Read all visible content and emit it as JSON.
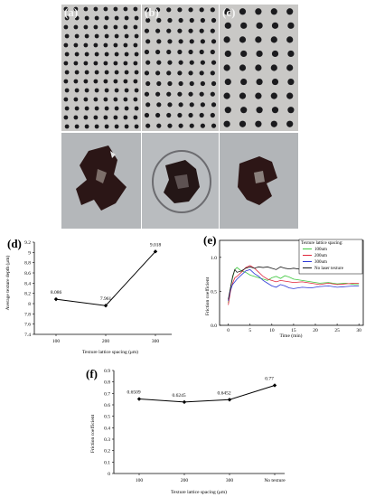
{
  "figure": {
    "colors": {
      "grid_background": "#c9c8c6",
      "dot_color": "#1b1b1e",
      "detail_background": "#b4b7ba",
      "crater_color": "#2b1616",
      "series_100": "#3ec93e",
      "series_200": "#e0263a",
      "series_300": "#2b37d6",
      "series_none": "#1a1a1a"
    },
    "micrographs": [
      {
        "label": "(a)",
        "name": "micrograph-a"
      },
      {
        "label": "(b)",
        "name": "micrograph-b"
      },
      {
        "label": "(c)",
        "name": "micrograph-c"
      }
    ],
    "detail_images": [
      {
        "name": "detail-a"
      },
      {
        "name": "detail-b"
      },
      {
        "name": "detail-c"
      }
    ]
  },
  "chart_data": [
    {
      "panel": "(d)",
      "type": "line",
      "x": [
        100,
        200,
        300
      ],
      "values": [
        8.086,
        7.961,
        9.018
      ],
      "data_labels": [
        "8.086",
        "7.961",
        "9.018"
      ],
      "xlabel": "Texture lattice spacing (μm)",
      "ylabel": "Average texture depth (μm)",
      "xticks": [
        "100",
        "200",
        "300"
      ],
      "yticks": [
        "7.4",
        "7.6",
        "7.8",
        "8",
        "8.2",
        "8.4",
        "8.6",
        "8.8",
        "9",
        "9.2"
      ],
      "ylim": [
        7.4,
        9.2
      ],
      "grid": false
    },
    {
      "panel": "(e)",
      "type": "line",
      "xlabel": "Time (min)",
      "ylabel": "Friction coefficient",
      "xticks": [
        "0",
        "5",
        "10",
        "15",
        "20",
        "25",
        "30"
      ],
      "yticks": [
        "0.0",
        "0.5",
        "1.0"
      ],
      "xlim": [
        -2,
        31
      ],
      "ylim": [
        0,
        1.25
      ],
      "legend_title": "Texture lattice spacing:",
      "legend_position": "top-right",
      "series": [
        {
          "name": "100um",
          "color": "#3ec93e",
          "x": [
            0,
            0.5,
            1,
            1.5,
            2,
            3,
            4,
            5,
            6,
            7,
            8,
            9,
            10,
            11,
            12,
            13,
            14,
            15,
            17,
            19,
            21,
            23,
            25,
            27,
            29,
            30
          ],
          "y": [
            0.33,
            0.55,
            0.7,
            0.82,
            0.85,
            0.8,
            0.78,
            0.74,
            0.72,
            0.7,
            0.68,
            0.66,
            0.7,
            0.72,
            0.69,
            0.73,
            0.71,
            0.68,
            0.66,
            0.64,
            0.62,
            0.63,
            0.61,
            0.62,
            0.6,
            0.6
          ]
        },
        {
          "name": "200um",
          "color": "#e0263a",
          "x": [
            0,
            0.5,
            1,
            1.5,
            2,
            3,
            4,
            5,
            6,
            7,
            8,
            9,
            10,
            11,
            12,
            13,
            14,
            15,
            17,
            19,
            21,
            23,
            25,
            27,
            29,
            30
          ],
          "y": [
            0.3,
            0.5,
            0.62,
            0.7,
            0.72,
            0.78,
            0.85,
            0.88,
            0.84,
            0.78,
            0.72,
            0.68,
            0.66,
            0.64,
            0.66,
            0.65,
            0.64,
            0.63,
            0.64,
            0.62,
            0.6,
            0.62,
            0.6,
            0.61,
            0.62,
            0.62
          ]
        },
        {
          "name": "300um",
          "color": "#2b37d6",
          "x": [
            0,
            0.5,
            1,
            1.5,
            2,
            3,
            4,
            5,
            6,
            7,
            8,
            9,
            10,
            11,
            12,
            13,
            14,
            15,
            17,
            19,
            21,
            23,
            25,
            27,
            29,
            30
          ],
          "y": [
            0.36,
            0.52,
            0.6,
            0.64,
            0.68,
            0.74,
            0.8,
            0.82,
            0.76,
            0.72,
            0.66,
            0.62,
            0.58,
            0.56,
            0.6,
            0.58,
            0.55,
            0.54,
            0.56,
            0.55,
            0.57,
            0.58,
            0.56,
            0.57,
            0.58,
            0.58
          ]
        },
        {
          "name": "No laser texture",
          "color": "#1a1a1a",
          "x": [
            0,
            0.5,
            1,
            1.5,
            2,
            3,
            4,
            5,
            6,
            7,
            8,
            9,
            10,
            11,
            12,
            13,
            14,
            15,
            17,
            19,
            21,
            23,
            25,
            27,
            29,
            30
          ],
          "y": [
            0.38,
            0.55,
            0.72,
            0.82,
            0.78,
            0.8,
            0.84,
            0.86,
            0.84,
            0.86,
            0.85,
            0.86,
            0.84,
            0.82,
            0.86,
            0.84,
            0.83,
            0.84,
            0.82,
            0.8,
            0.81,
            0.8,
            0.8,
            0.79,
            0.78,
            0.78
          ]
        }
      ],
      "grid": false
    },
    {
      "panel": "(f)",
      "type": "line",
      "categories": [
        "100",
        "200",
        "300",
        "No texture"
      ],
      "values": [
        0.6509,
        0.6245,
        0.6452,
        0.77
      ],
      "data_labels": [
        "0.6509",
        "0.6245",
        "0.6452",
        "0.77"
      ],
      "xlabel": "Texture lattice spacing (μm)",
      "ylabel": "Friction coefficient",
      "yticks": [
        "0",
        "0.1",
        "0.2",
        "0.3",
        "0.4",
        "0.5",
        "0.6",
        "0.7",
        "0.8",
        "0.9"
      ],
      "ylim": [
        0,
        0.9
      ],
      "grid": false
    }
  ]
}
